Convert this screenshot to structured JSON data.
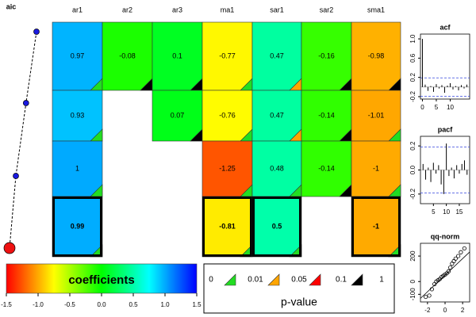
{
  "chart_data": [
    {
      "type": "dotline",
      "title": "aic",
      "values": [
        4.75,
        3.1,
        1.5,
        0.5
      ],
      "xlim": [
        0,
        5
      ],
      "color": "#1a1ae0",
      "best_color": "#ee1111"
    },
    {
      "type": "heatmap",
      "columns": [
        "ar1",
        "ar2",
        "ar3",
        "ma1",
        "sar1",
        "sar2",
        "sma1"
      ],
      "rows": [
        {
          "values": [
            0.97,
            -0.08,
            0.1,
            -0.77,
            0.47,
            -0.16,
            -0.98
          ],
          "pvalue_colors": [
            "#22dd22",
            "#000000",
            "#000000",
            "#22dd22",
            "#ffa500",
            "#000000",
            "#000000"
          ]
        },
        {
          "values": [
            0.93,
            null,
            0.07,
            -0.76,
            0.47,
            -0.14,
            -1.01
          ],
          "pvalue_colors": [
            "#22dd22",
            null,
            "#000000",
            "#22dd22",
            "#ffa500",
            "#000000",
            "#22dd22"
          ]
        },
        {
          "values": [
            1,
            null,
            null,
            -1.25,
            0.48,
            -0.14,
            -1
          ],
          "pvalue_colors": [
            "#22dd22",
            null,
            null,
            "#22dd22",
            "#22dd22",
            "#000000",
            "#22dd22"
          ]
        },
        {
          "values": [
            0.99,
            null,
            null,
            -0.81,
            0.5,
            null,
            -1
          ],
          "pvalue_colors": [
            "#22dd22",
            null,
            null,
            "#22dd22",
            "#22dd22",
            null,
            "#22dd22"
          ]
        }
      ],
      "highlight_row": 3,
      "colorscale": [
        "#ff0000",
        "#ffff00",
        "#00ff00",
        "#00ffff",
        "#0000ff"
      ],
      "clim": [
        -1.5,
        1.5
      ],
      "colorbar_title": "coefficients",
      "colorbar_ticks": [
        -1.5,
        {
          "value": -1,
          "label": "-1.0"
        },
        -0.5,
        {
          "value": 0,
          "label": "0.0"
        },
        0.5,
        {
          "value": 1,
          "label": "1.0"
        },
        1.5
      ],
      "pvalue_title": "p-value",
      "pvalue_breaks": [
        0,
        0.01,
        0.05,
        0.1,
        1
      ],
      "pvalue_legend_colors": [
        "#22dd22",
        "#ffa500",
        "#ff0000",
        "#000000"
      ]
    },
    {
      "type": "acf",
      "title": "acf",
      "x": [
        0,
        1,
        2,
        3,
        4,
        5,
        6,
        7,
        8,
        9,
        10,
        11,
        12,
        13,
        14,
        15,
        16
      ],
      "values": [
        1,
        0.05,
        -0.08,
        0.02,
        -0.1,
        0.06,
        -0.03,
        0.04,
        -0.12,
        0.03,
        0.08,
        -0.05,
        0.02,
        -0.07,
        0.04,
        -0.03,
        0.05
      ],
      "conf": 0.19,
      "xlim": [
        -0.7,
        17
      ],
      "ylim": [
        -0.25,
        1.1
      ],
      "xticks": [
        0,
        5,
        10
      ],
      "yticks": [
        -0.2,
        0.2,
        0.6,
        {
          "value": 1,
          "label": "1.0"
        }
      ]
    },
    {
      "type": "acf",
      "title": "pacf",
      "x": [
        1,
        2,
        3,
        4,
        5,
        6,
        7,
        8,
        9,
        10,
        11,
        12,
        13,
        14,
        15,
        16,
        17,
        18
      ],
      "values": [
        0.05,
        -0.08,
        0.02,
        -0.1,
        0.06,
        -0.03,
        0.04,
        -0.12,
        -0.2,
        0.22,
        -0.05,
        0.02,
        -0.07,
        0.04,
        -0.03,
        0.05,
        0.08,
        -0.04
      ],
      "conf": 0.19,
      "xlim": [
        0,
        19
      ],
      "ylim": [
        -0.28,
        0.28
      ],
      "xticks": [
        5,
        10,
        15
      ],
      "yticks": [
        -0.2,
        {
          "value": 0,
          "label": "0.0"
        },
        0.2
      ]
    },
    {
      "type": "qq",
      "title": "qq-norm",
      "x": [
        -2.2,
        -1.8,
        -1.5,
        -1.2,
        -1,
        -0.8,
        -0.6,
        -0.4,
        -0.2,
        0,
        0.2,
        0.4,
        0.6,
        0.8,
        1,
        1.2,
        1.5,
        1.8,
        2.2
      ],
      "y": [
        -120,
        -110,
        -60,
        -20,
        0,
        10,
        20,
        35,
        45,
        55,
        65,
        80,
        110,
        140,
        160,
        180,
        200,
        230,
        260
      ],
      "ref_line": {
        "intercept": 50,
        "slope": 65
      },
      "xlim": [
        -2.8,
        2.8
      ],
      "ylim": [
        -160,
        300
      ],
      "xticks": [
        -2,
        0,
        2
      ],
      "yticks": [
        -100,
        0,
        200
      ]
    }
  ]
}
